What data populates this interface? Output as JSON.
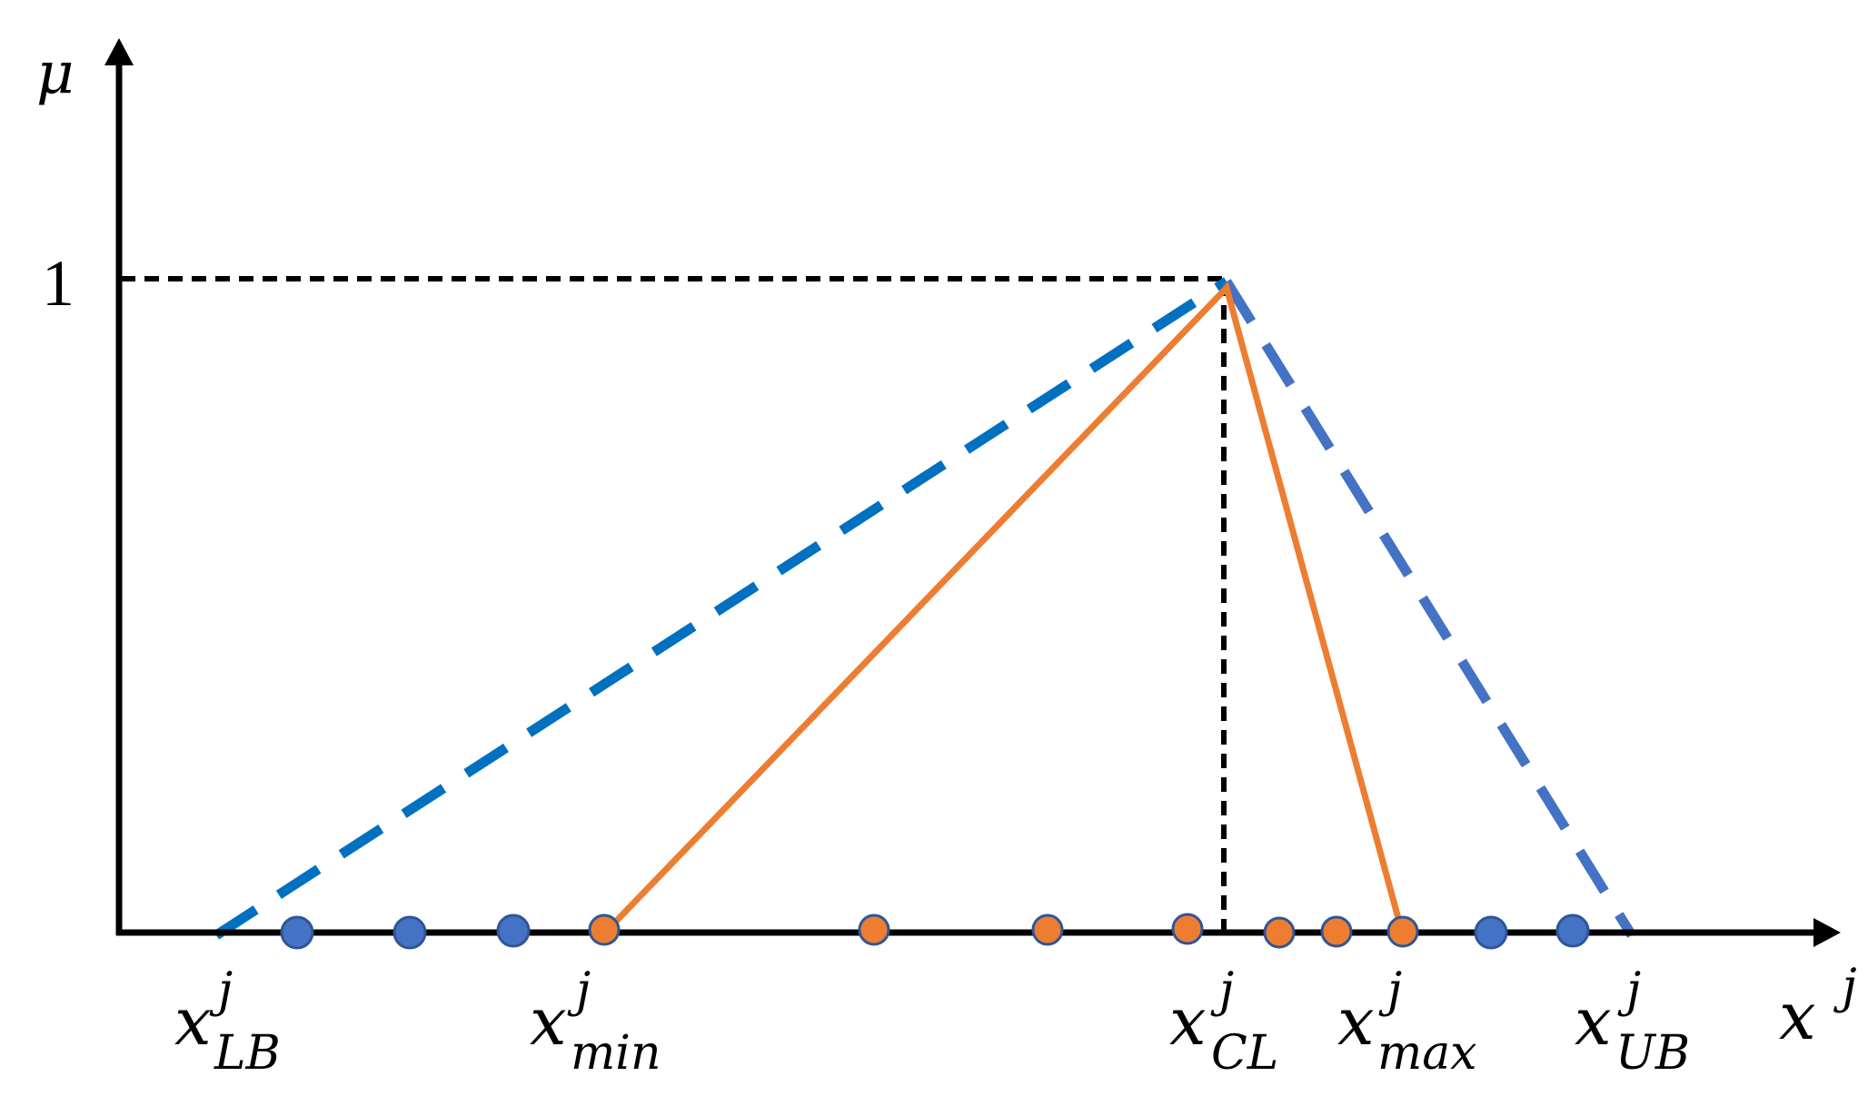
{
  "labels": {
    "y_axis": "μ",
    "x_axis": "x",
    "x_axis_sup": "j",
    "tick_one": "1"
  },
  "x_markers": [
    {
      "base": "x",
      "sup": "j",
      "sub": "LB"
    },
    {
      "base": "x",
      "sup": "j",
      "sub": "min"
    },
    {
      "base": "x",
      "sup": "j",
      "sub": "CL"
    },
    {
      "base": "x",
      "sup": "j",
      "sub": "max"
    },
    {
      "base": "x",
      "sup": "j",
      "sub": "UB"
    }
  ],
  "colors": {
    "axis": "#000000",
    "dashed_triangle": "#4472C4",
    "dashed_triangle_left": "#0070C0",
    "solid_triangle": "#ED7D31",
    "blue_points": "#4472C4",
    "orange_points": "#ED7D31",
    "point_outline": "#2F5597",
    "guide_lines": "#000000"
  }
}
